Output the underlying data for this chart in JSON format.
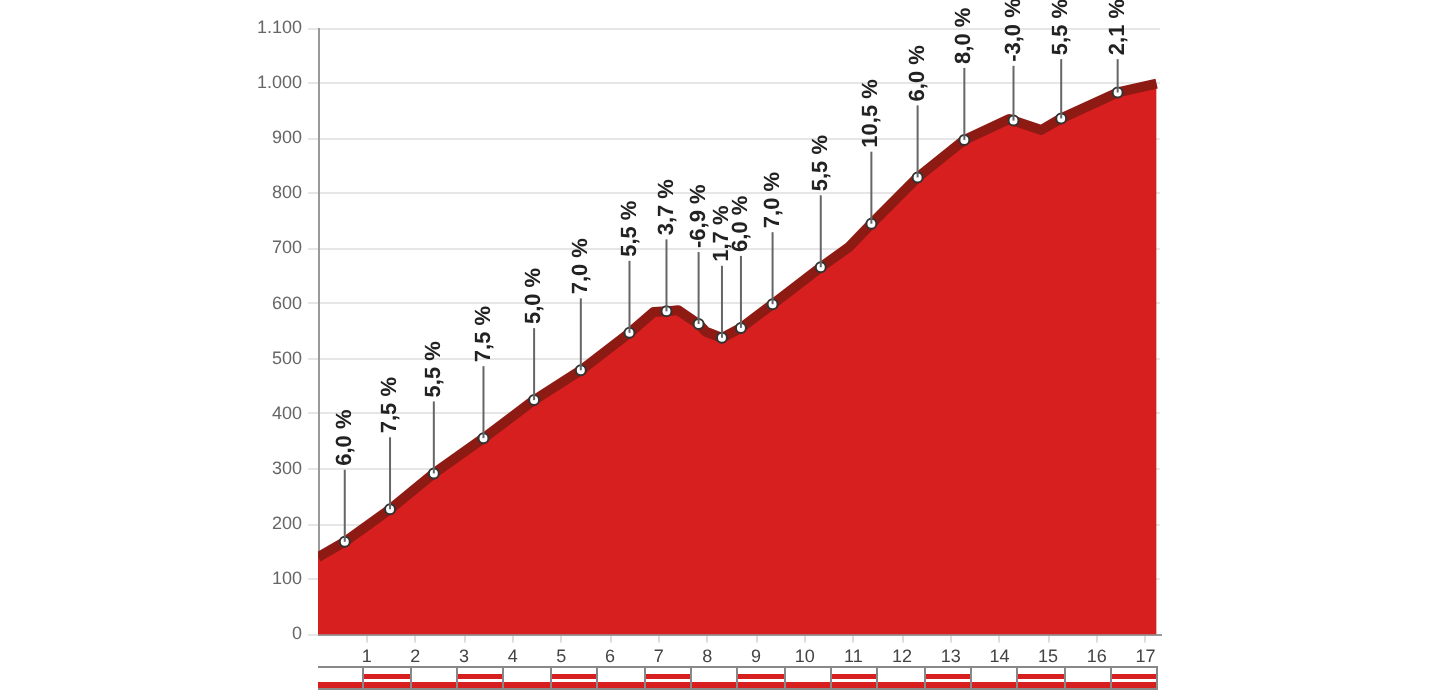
{
  "chart_data": {
    "type": "area",
    "color": "#d81f1f",
    "x": [
      0,
      0.55,
      1.48,
      2.38,
      3.4,
      4.44,
      5.4,
      6.4,
      6.9,
      7.16,
      7.4,
      7.82,
      7.97,
      8.3,
      8.69,
      9.34,
      10.33,
      10.9,
      11.37,
      12.32,
      13.28,
      14.2,
      14.29,
      14.86,
      15.27,
      16.43,
      17.23
    ],
    "values": [
      140,
      168,
      227,
      292,
      356,
      425,
      479,
      547,
      585,
      586,
      588,
      563,
      549,
      538,
      556,
      599,
      666,
      702,
      745,
      829,
      897,
      935,
      932,
      915,
      936,
      983,
      999
    ],
    "annotations": [
      {
        "text": "6,0 %",
        "x": 0.55,
        "y": 168
      },
      {
        "text": "7,5 %",
        "x": 1.48,
        "y": 227
      },
      {
        "text": "5,5 %",
        "x": 2.38,
        "y": 292
      },
      {
        "text": "7,5 %",
        "x": 3.4,
        "y": 356
      },
      {
        "text": "5,0 %",
        "x": 4.44,
        "y": 425
      },
      {
        "text": "7,0 %",
        "x": 5.4,
        "y": 479
      },
      {
        "text": "5,5 %",
        "x": 6.4,
        "y": 547
      },
      {
        "text": "3,7 %",
        "x": 7.16,
        "y": 586
      },
      {
        "text": "-6,9 %",
        "x": 7.82,
        "y": 563
      },
      {
        "text": "1,7 %",
        "x": 8.3,
        "y": 538
      },
      {
        "text": "6,0 %",
        "x": 8.69,
        "y": 556
      },
      {
        "text": "7,0 %",
        "x": 9.34,
        "y": 599
      },
      {
        "text": "5,5 %",
        "x": 10.33,
        "y": 666
      },
      {
        "text": "10,5 %",
        "x": 11.37,
        "y": 745
      },
      {
        "text": "6,0 %",
        "x": 12.32,
        "y": 829
      },
      {
        "text": "8,0 %",
        "x": 13.28,
        "y": 897
      },
      {
        "text": "-3,0 %",
        "x": 14.29,
        "y": 932
      },
      {
        "text": "5,5 %",
        "x": 15.27,
        "y": 936
      },
      {
        "text": "2,1 %",
        "x": 16.43,
        "y": 983
      }
    ],
    "xlim": [
      0,
      17.3
    ],
    "xticks": [
      1,
      2,
      3,
      4,
      5,
      6,
      7,
      8,
      9,
      10,
      11,
      12,
      13,
      14,
      15,
      16,
      17
    ],
    "ylim": [
      0,
      1100
    ],
    "yticks": [
      {
        "value": 0,
        "label": "0"
      },
      {
        "value": 100,
        "label": "100"
      },
      {
        "value": 200,
        "label": "200"
      },
      {
        "value": 300,
        "label": "300"
      },
      {
        "value": 400,
        "label": "400"
      },
      {
        "value": 500,
        "label": "500"
      },
      {
        "value": 600,
        "label": "600"
      },
      {
        "value": 700,
        "label": "700"
      },
      {
        "value": 800,
        "label": "800"
      },
      {
        "value": 900,
        "label": "900"
      },
      {
        "value": 1000,
        "label": "1.000"
      },
      {
        "value": 1100,
        "label": "1.100"
      }
    ],
    "grid": "y",
    "legend": false,
    "marker": "circle"
  }
}
